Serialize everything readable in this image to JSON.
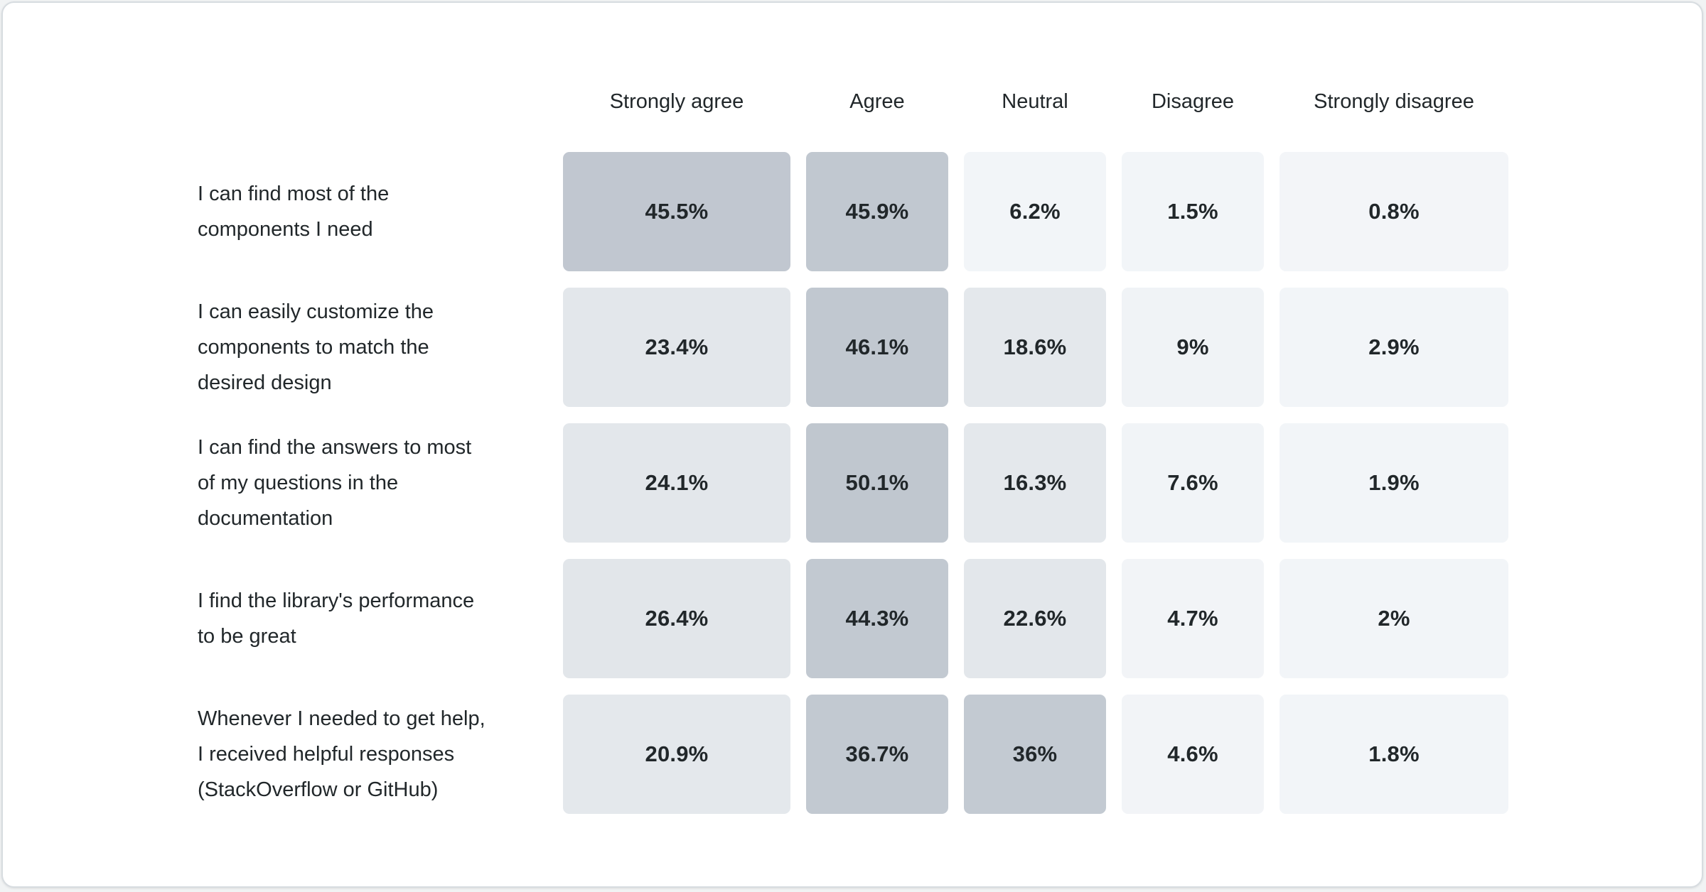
{
  "card": {
    "background": "#ffffff",
    "border_color": "#d7dce0"
  },
  "text_color": "#21272a",
  "chart_data": {
    "type": "heatmap",
    "title": "",
    "subtitle": "",
    "legend": "none",
    "grid": false,
    "columns": [
      "Strongly agree",
      "Agree",
      "Neutral",
      "Disagree",
      "Strongly disagree"
    ],
    "rows": [
      {
        "label": "I can find most of the components I need",
        "label_lines": [
          "I can find most of the",
          "components I need"
        ],
        "value_labels": [
          "45.5%",
          "45.9%",
          "6.2%",
          "1.5%",
          "0.8%"
        ],
        "values": [
          45.5,
          45.9,
          6.2,
          1.5,
          0.8
        ],
        "cell_colors": [
          "#c1c7d0",
          "#c1c8d0",
          "#f2f5f8",
          "#f2f5f8",
          "#f3f5f8"
        ]
      },
      {
        "label": "I can easily customize the components to match the desired design",
        "label_lines": [
          "I can easily customize the",
          "components to match the",
          "desired design"
        ],
        "value_labels": [
          "23.4%",
          "46.1%",
          "18.6%",
          "9%",
          "2.9%"
        ],
        "values": [
          23.4,
          46.1,
          18.6,
          9,
          2.9
        ],
        "cell_colors": [
          "#e3e7eb",
          "#c1c8d0",
          "#e4e8ec",
          "#f0f3f6",
          "#f2f5f8"
        ]
      },
      {
        "label": "I can find the answers to most of my questions in the documentation",
        "label_lines": [
          "I can find the answers to most",
          "of my questions in the",
          "documentation"
        ],
        "value_labels": [
          "24.1%",
          "50.1%",
          "16.3%",
          "7.6%",
          "1.9%"
        ],
        "values": [
          24.1,
          50.1,
          16.3,
          7.6,
          1.9
        ],
        "cell_colors": [
          "#e3e7eb",
          "#c0c7cf",
          "#e4e8ec",
          "#f1f4f7",
          "#f2f5f8"
        ]
      },
      {
        "label": "I find the library's performance to be great",
        "label_lines": [
          "I find the library's performance",
          "to be great"
        ],
        "value_labels": [
          "26.4%",
          "44.3%",
          "22.6%",
          "4.7%",
          "2%"
        ],
        "values": [
          26.4,
          44.3,
          22.6,
          4.7,
          2
        ],
        "cell_colors": [
          "#e2e6ea",
          "#c2c9d1",
          "#e3e7eb",
          "#f2f4f7",
          "#f2f5f8"
        ]
      },
      {
        "label": "Whenever I needed to get help, I received helpful responses (StackOverflow or GitHub)",
        "label_lines": [
          "Whenever I needed to get help,",
          "I received helpful responses",
          "(StackOverflow or GitHub)"
        ],
        "value_labels": [
          "20.9%",
          "36.7%",
          "36%",
          "4.6%",
          "1.8%"
        ],
        "values": [
          20.9,
          36.7,
          36,
          4.6,
          1.8
        ],
        "cell_colors": [
          "#e4e8ec",
          "#c2c9d1",
          "#c3cad2",
          "#f2f4f7",
          "#f2f5f8"
        ]
      }
    ],
    "color_scale": {
      "description": "sequential blue-gray, darker = higher percentage",
      "high": "#c1c8d0",
      "mid": "#e3e7eb",
      "low": "#f2f5f8"
    }
  }
}
